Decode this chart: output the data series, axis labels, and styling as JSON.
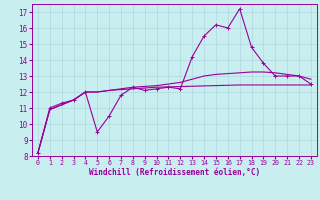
{
  "xlabel": "Windchill (Refroidissement éolien,°C)",
  "bg_color": "#c8eef0",
  "grid_color": "#b0d8dc",
  "line_color": "#990099",
  "xlim": [
    -0.5,
    23.5
  ],
  "ylim": [
    8,
    17.5
  ],
  "xticks": [
    0,
    1,
    2,
    3,
    4,
    5,
    6,
    7,
    8,
    9,
    10,
    11,
    12,
    13,
    14,
    15,
    16,
    17,
    18,
    19,
    20,
    21,
    22,
    23
  ],
  "yticks": [
    8,
    9,
    10,
    11,
    12,
    13,
    14,
    15,
    16,
    17
  ],
  "line1_x": [
    0,
    1,
    2,
    3,
    4,
    5,
    6,
    7,
    8,
    9,
    10,
    11,
    12,
    13,
    14,
    15,
    16,
    17,
    18,
    19,
    20,
    21,
    22,
    23
  ],
  "line1_y": [
    8.2,
    11.0,
    11.3,
    11.5,
    12.0,
    9.5,
    10.5,
    11.8,
    12.3,
    12.1,
    12.2,
    12.3,
    12.2,
    14.2,
    15.5,
    16.2,
    16.0,
    17.2,
    14.8,
    13.8,
    13.0,
    13.0,
    13.0,
    12.5
  ],
  "line2_x": [
    0,
    1,
    2,
    3,
    4,
    5,
    6,
    7,
    8,
    9,
    10,
    11,
    12,
    13,
    14,
    15,
    16,
    17,
    18,
    19,
    20,
    21,
    22,
    23
  ],
  "line2_y": [
    8.2,
    10.9,
    11.2,
    11.5,
    12.0,
    12.0,
    12.1,
    12.15,
    12.2,
    12.25,
    12.3,
    12.32,
    12.34,
    12.36,
    12.38,
    12.4,
    12.42,
    12.44,
    12.44,
    12.44,
    12.44,
    12.44,
    12.44,
    12.44
  ],
  "line3_x": [
    0,
    1,
    2,
    3,
    4,
    5,
    6,
    7,
    8,
    9,
    10,
    11,
    12,
    13,
    14,
    15,
    16,
    17,
    18,
    19,
    20,
    21,
    22,
    23
  ],
  "line3_y": [
    8.2,
    10.9,
    11.2,
    11.5,
    12.0,
    12.0,
    12.1,
    12.2,
    12.3,
    12.35,
    12.4,
    12.5,
    12.6,
    12.8,
    13.0,
    13.1,
    13.15,
    13.2,
    13.25,
    13.25,
    13.2,
    13.1,
    13.0,
    12.8
  ]
}
